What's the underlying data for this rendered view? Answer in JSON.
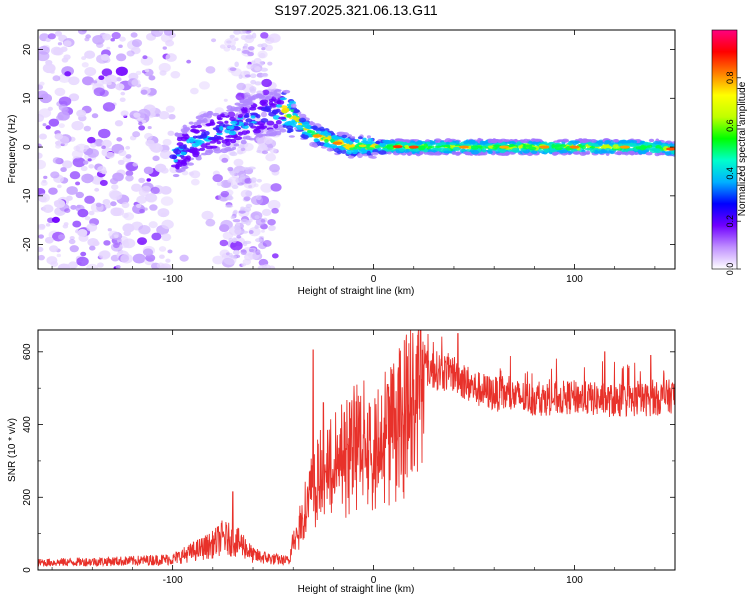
{
  "title": "S197.2025.321.06.13.G11",
  "chart_data": [
    {
      "type": "heatmap",
      "xlabel": "Height of straight line (km)",
      "ylabel": "Frequency (Hz)",
      "xlim": [
        -167,
        150
      ],
      "ylim": [
        -25,
        24
      ],
      "xticks": [
        -100,
        0,
        100
      ],
      "yticks": [
        -20,
        -10,
        0,
        10,
        20
      ],
      "ridge": {
        "x": [
          -100,
          -90,
          -80,
          -70,
          -60,
          -50,
          -45,
          -40,
          -35,
          -30,
          -25,
          -20,
          -15,
          -10,
          -5,
          0,
          10,
          20,
          40,
          60,
          80,
          100,
          120,
          140,
          150
        ],
        "y": [
          -2,
          1,
          3,
          4,
          6,
          7,
          7.5,
          6.5,
          4,
          2.5,
          2,
          1,
          0.5,
          0,
          0.3,
          0,
          0.1,
          0,
          0,
          0,
          0,
          0,
          0,
          0,
          -0.5
        ]
      },
      "colorbar": {
        "label": "Normalized spectral amplitude",
        "range": [
          0.0,
          1.0
        ],
        "ticks": [
          "0.0",
          "0.2",
          "0.4",
          "0.6",
          "0.8"
        ],
        "colors": [
          "#ffffff",
          "#c090ff",
          "#7000ff",
          "#0000ff",
          "#00b0ff",
          "#00ffcc",
          "#00ff00",
          "#c0ff00",
          "#ffff00",
          "#ff8000",
          "#ff0000",
          "#ff0080"
        ]
      }
    },
    {
      "type": "line",
      "xlabel": "Height of straight line (km)",
      "ylabel": "SNR (10 * v/v)",
      "xlim": [
        -167,
        150
      ],
      "ylim": [
        0,
        660
      ],
      "xticks": [
        -100,
        0,
        100
      ],
      "yticks": [
        0,
        200,
        400,
        600
      ],
      "color": "#e8312a",
      "envelope": {
        "x": [
          -167,
          -120,
          -100,
          -90,
          -80,
          -75,
          -70,
          -65,
          -60,
          -50,
          -42,
          -40,
          -35,
          -30,
          -25,
          -20,
          -15,
          -10,
          -5,
          0,
          5,
          10,
          15,
          20,
          25,
          30,
          40,
          50,
          60,
          80,
          100,
          120,
          140,
          150
        ],
        "y": [
          20,
          25,
          30,
          50,
          70,
          90,
          80,
          70,
          40,
          30,
          25,
          90,
          170,
          250,
          300,
          320,
          350,
          380,
          390,
          350,
          420,
          450,
          480,
          520,
          560,
          550,
          540,
          500,
          485,
          470,
          475,
          465,
          470,
          480
        ]
      },
      "spikes": [
        {
          "x": -70,
          "y": 215
        },
        {
          "x": -30,
          "y": 605
        },
        {
          "x": -25,
          "y": 460
        },
        {
          "x": -12,
          "y": 460
        },
        {
          "x": 7,
          "y": 510
        },
        {
          "x": 22,
          "y": 645
        },
        {
          "x": 42,
          "y": 650
        },
        {
          "x": 115,
          "y": 600
        },
        {
          "x": 138,
          "y": 590
        }
      ]
    }
  ]
}
